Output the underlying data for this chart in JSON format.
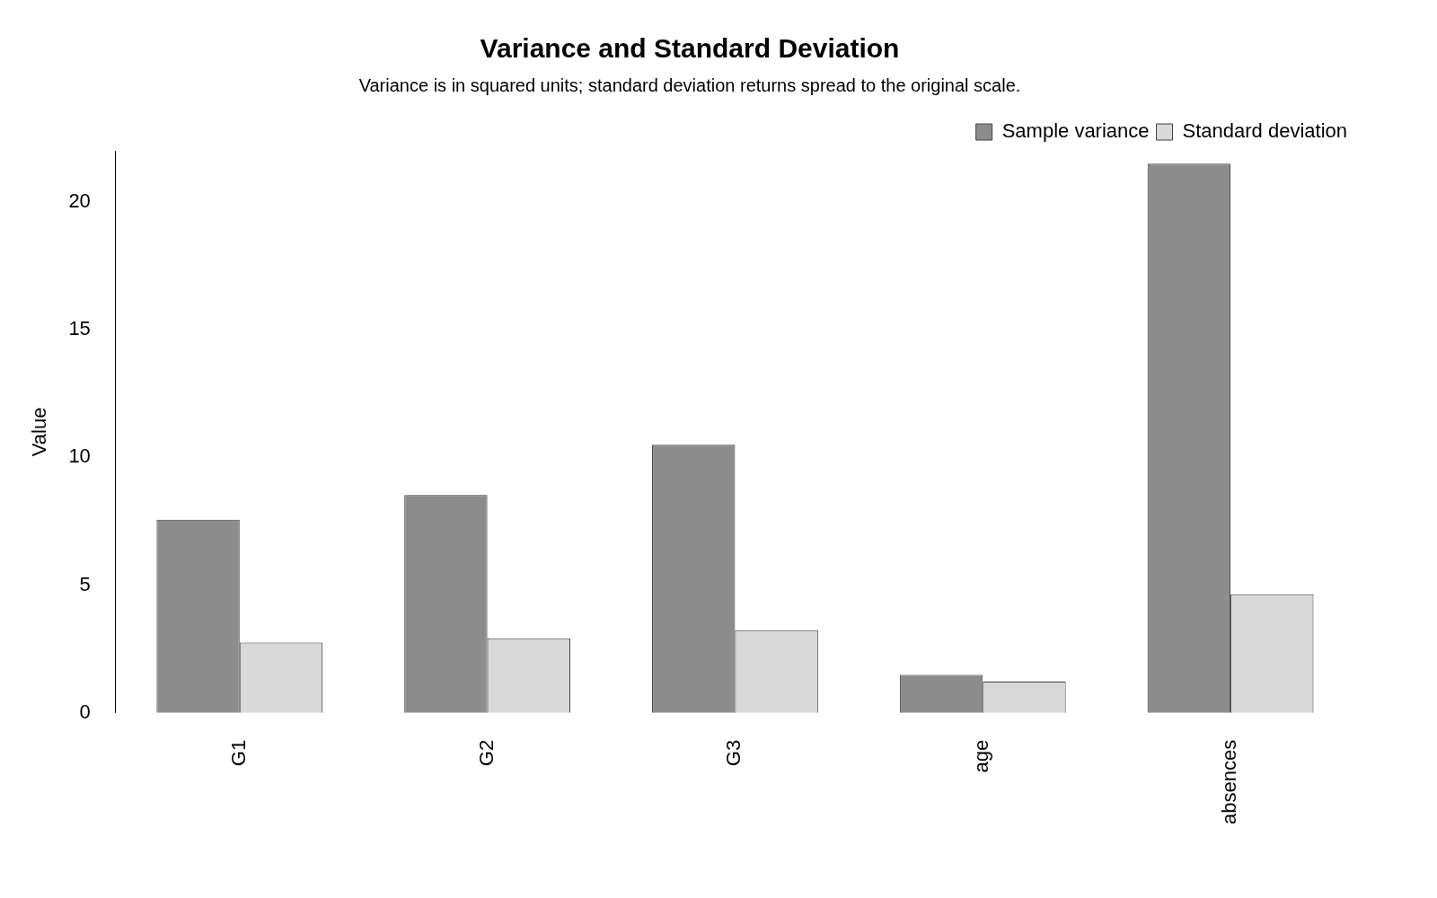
{
  "chart_data": {
    "type": "bar",
    "title": "Variance and Standard Deviation",
    "subtitle": "Variance is in squared units; standard deviation returns spread to the original scale.",
    "ylabel": "Value",
    "categories": [
      "G1",
      "G2",
      "G3",
      "age",
      "absences"
    ],
    "series": [
      {
        "name": "Sample variance",
        "color": "#8c8c8c",
        "values": [
          7.56,
          8.53,
          10.5,
          1.49,
          21.5
        ]
      },
      {
        "name": "Standard deviation",
        "color": "#d9d9d9",
        "values": [
          2.75,
          2.92,
          3.24,
          1.22,
          4.64
        ]
      }
    ],
    "ylim": [
      0,
      22
    ],
    "yticks": [
      0,
      5,
      10,
      15,
      20
    ],
    "grid": false,
    "legend": "top right"
  }
}
